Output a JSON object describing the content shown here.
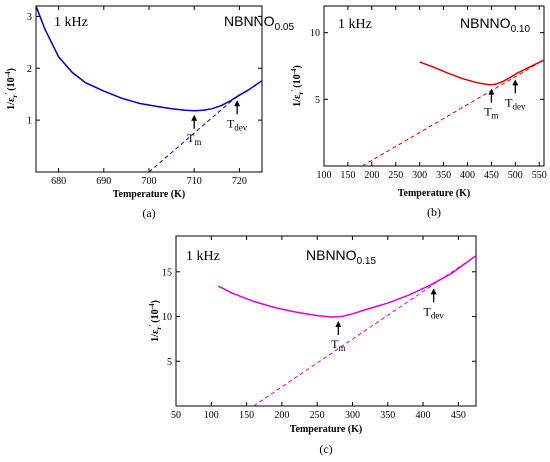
{
  "chart_data": [
    {
      "id": "a",
      "type": "line",
      "panel_label": "(a)",
      "xlabel": "Temperature (K)",
      "ylabel_main": "1/ε",
      "ylabel_sub": "r",
      "ylabel_sup": "'",
      "ylabel_unit": "(10",
      "ylabel_exp": "-4",
      "ylabel_close": ")",
      "frequency_label": "1 kHz",
      "composition_main": "NBNNO",
      "composition_sub": "0.05",
      "xlim": [
        675,
        725
      ],
      "ylim": [
        0,
        3.2
      ],
      "x_ticks": [
        680,
        690,
        700,
        710,
        720
      ],
      "y_ticks": [
        1,
        2,
        3
      ],
      "color": "#0000cc",
      "series": [
        {
          "style": "solid",
          "x": [
            675,
            677,
            680,
            683,
            686,
            690,
            694,
            698,
            702,
            705,
            708,
            710,
            712,
            714,
            716,
            718,
            720,
            722,
            724,
            725
          ],
          "y": [
            3.2,
            2.75,
            2.22,
            1.92,
            1.72,
            1.56,
            1.42,
            1.32,
            1.26,
            1.22,
            1.19,
            1.18,
            1.19,
            1.22,
            1.28,
            1.37,
            1.48,
            1.58,
            1.7,
            1.76
          ]
        },
        {
          "style": "dashed",
          "x": [
            700,
            720
          ],
          "y": [
            0.0,
            1.5
          ]
        }
      ],
      "annotations": [
        {
          "main": "T",
          "sub": "m",
          "x": 710,
          "y": 1.18
        },
        {
          "main": "T",
          "sub": "dev",
          "x": 719.5,
          "y": 1.46
        }
      ]
    },
    {
      "id": "b",
      "type": "line",
      "panel_label": "(b)",
      "xlabel": "Temperature (K)",
      "ylabel_main": "1/ε",
      "ylabel_sub": "r",
      "ylabel_sup": "'",
      "ylabel_unit": "(10",
      "ylabel_exp": "-4",
      "ylabel_close": ")",
      "frequency_label": "1 kHz",
      "composition_main": "NBNNO",
      "composition_sub": "0.10",
      "xlim": [
        100,
        560
      ],
      "ylim": [
        0,
        12
      ],
      "x_ticks": [
        100,
        150,
        200,
        250,
        300,
        350,
        400,
        450,
        500,
        550
      ],
      "y_ticks": [
        5,
        10
      ],
      "color": "#e00000",
      "series": [
        {
          "style": "solid",
          "x": [
            300,
            330,
            360,
            390,
            420,
            440,
            450,
            460,
            475,
            490,
            505,
            520,
            540,
            560
          ],
          "y": [
            7.8,
            7.4,
            6.95,
            6.55,
            6.25,
            6.12,
            6.1,
            6.15,
            6.35,
            6.65,
            6.98,
            7.25,
            7.6,
            7.95
          ]
        },
        {
          "style": "dashed",
          "x": [
            180,
            560
          ],
          "y": [
            0.0,
            7.95
          ]
        }
      ],
      "annotations": [
        {
          "main": "T",
          "sub": "m",
          "x": 450,
          "y": 6.1
        },
        {
          "main": "T",
          "sub": "dev",
          "x": 500,
          "y": 6.8
        }
      ]
    },
    {
      "id": "c",
      "type": "line",
      "panel_label": "(c)",
      "xlabel": "Temperature (K)",
      "ylabel_main": "1/ε",
      "ylabel_sub": "r",
      "ylabel_sup": "'",
      "ylabel_unit": "(10",
      "ylabel_exp": "-4",
      "ylabel_close": ")",
      "frequency_label": "1 kHz",
      "composition_main": "NBNNO",
      "composition_sub": "0.15",
      "xlim": [
        50,
        475
      ],
      "ylim": [
        0,
        19
      ],
      "x_ticks": [
        50,
        100,
        150,
        200,
        250,
        300,
        350,
        400,
        450
      ],
      "y_ticks": [
        5,
        10,
        15
      ],
      "color": "#e000e0",
      "series": [
        {
          "style": "solid",
          "x": [
            110,
            130,
            160,
            190,
            220,
            250,
            270,
            285,
            300,
            320,
            350,
            380,
            410,
            440,
            475
          ],
          "y": [
            13.4,
            12.6,
            11.7,
            11.0,
            10.5,
            10.1,
            9.95,
            10.0,
            10.3,
            10.8,
            11.5,
            12.4,
            13.5,
            14.8,
            16.8
          ]
        },
        {
          "style": "dashed",
          "x": [
            160,
            475
          ],
          "y": [
            0.0,
            16.8
          ]
        }
      ],
      "annotations": [
        {
          "main": "T",
          "sub": "m",
          "x": 280,
          "y": 9.95
        },
        {
          "main": "T",
          "sub": "dev",
          "x": 415,
          "y": 13.6
        }
      ]
    }
  ]
}
